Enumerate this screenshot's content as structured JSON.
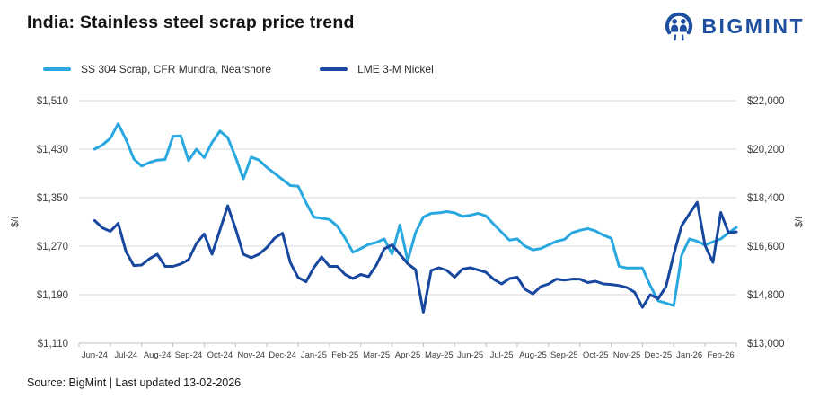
{
  "header": {
    "title": "India: Stainless steel scrap price trend",
    "brand": "BIGMINT",
    "brand_color": "#1d4f9e"
  },
  "legend": [
    {
      "label": "SS 304 Scrap, CFR Mundra, Nearshore",
      "color": "#29a8e0"
    },
    {
      "label": "LME 3-M Nickel",
      "color": "#17479e"
    }
  ],
  "footer": {
    "source": "Source: BigMint | Last updated 13-02-2026"
  },
  "chart_data": {
    "type": "line",
    "title": "India: Stainless steel scrap price trend",
    "grid": true,
    "legend_position": "top-left",
    "x_tick_labels": [
      "Jun-24",
      "Jul-24",
      "Aug-24",
      "Sep-24",
      "Oct-24",
      "Nov-24",
      "Dec-24",
      "Jan-25",
      "Feb-25",
      "Mar-25",
      "Apr-25",
      "May-25",
      "Jun-25",
      "Jul-25",
      "Aug-25",
      "Sep-25",
      "Oct-25",
      "Nov-25",
      "Dec-25",
      "Jan-26",
      "Feb-26"
    ],
    "left_axis": {
      "label": "$/t",
      "min": 1110,
      "max": 1510,
      "tick_labels": [
        "$1,510",
        "$1,430",
        "$1,350",
        "$1,270",
        "$1,190",
        "$1,110"
      ],
      "tick_values": [
        1510,
        1430,
        1350,
        1270,
        1190,
        1110
      ]
    },
    "right_axis": {
      "label": "$/t",
      "min": 13000,
      "max": 22000,
      "tick_labels": [
        "$22,000",
        "$20,200",
        "$18,400",
        "$16,600",
        "$14,800",
        "$13,000"
      ],
      "tick_values": [
        22000,
        20200,
        18400,
        16600,
        14800,
        13000
      ]
    },
    "x_unit": "months since Jun-24 (weekly points)",
    "x": [
      0,
      0.25,
      0.5,
      0.75,
      1,
      1.25,
      1.5,
      1.75,
      2,
      2.25,
      2.5,
      2.75,
      3,
      3.25,
      3.5,
      3.75,
      4,
      4.25,
      4.5,
      4.75,
      5,
      5.25,
      5.5,
      5.75,
      6,
      6.25,
      6.5,
      6.75,
      7,
      7.25,
      7.5,
      7.75,
      8,
      8.25,
      8.5,
      8.75,
      9,
      9.25,
      9.5,
      9.75,
      10,
      10.25,
      10.5,
      10.75,
      11,
      11.25,
      11.5,
      11.75,
      12,
      12.25,
      12.5,
      12.75,
      13,
      13.25,
      13.5,
      13.75,
      14,
      14.25,
      14.5,
      14.75,
      15,
      15.25,
      15.5,
      15.75,
      16,
      16.25,
      16.5,
      16.75,
      17,
      17.25,
      17.5,
      17.75,
      18,
      18.25,
      18.5,
      18.75,
      19,
      19.25,
      19.5,
      19.75,
      20,
      20.25,
      20.5
    ],
    "series": [
      {
        "name": "SS 304 Scrap, CFR Mundra, Nearshore",
        "axis": "left",
        "color": "#29a8e0",
        "values": [
          1430,
          1437,
          1448,
          1472,
          1446,
          1414,
          1402,
          1408,
          1412,
          1413,
          1451,
          1452,
          1411,
          1430,
          1416,
          1441,
          1460,
          1449,
          1417,
          1381,
          1417,
          1412,
          1400,
          1390,
          1380,
          1370,
          1369,
          1342,
          1318,
          1316,
          1314,
          1303,
          1283,
          1260,
          1266,
          1273,
          1276,
          1282,
          1257,
          1305,
          1246,
          1292,
          1318,
          1324,
          1325,
          1327,
          1325,
          1319,
          1321,
          1324,
          1320,
          1306,
          1293,
          1280,
          1282,
          1270,
          1264,
          1266,
          1272,
          1278,
          1281,
          1292,
          1296,
          1299,
          1295,
          1288,
          1283,
          1237,
          1234,
          1234,
          1234,
          1205,
          1180,
          1176,
          1172,
          1255,
          1282,
          1278,
          1272,
          1277,
          1282,
          1292,
          1301
        ]
      },
      {
        "name": "LME 3-M Nickel",
        "axis": "right",
        "color": "#17479e",
        "values": [
          17550,
          17280,
          17150,
          17450,
          16400,
          15880,
          15900,
          16130,
          16300,
          15850,
          15850,
          15940,
          16100,
          16700,
          17050,
          16300,
          17200,
          18100,
          17250,
          16300,
          16170,
          16300,
          16550,
          16900,
          17080,
          15990,
          15440,
          15280,
          15800,
          16200,
          15850,
          15850,
          15550,
          15400,
          15550,
          15470,
          15900,
          16500,
          16650,
          16300,
          15950,
          15730,
          14150,
          15700,
          15800,
          15700,
          15450,
          15750,
          15800,
          15720,
          15630,
          15370,
          15200,
          15400,
          15450,
          15000,
          14830,
          15100,
          15200,
          15380,
          15340,
          15380,
          15380,
          15250,
          15300,
          15200,
          15180,
          15140,
          15070,
          14890,
          14330,
          14800,
          14650,
          15100,
          16300,
          17350,
          17800,
          18230,
          16630,
          16000,
          17850,
          17100,
          17130
        ]
      }
    ]
  }
}
